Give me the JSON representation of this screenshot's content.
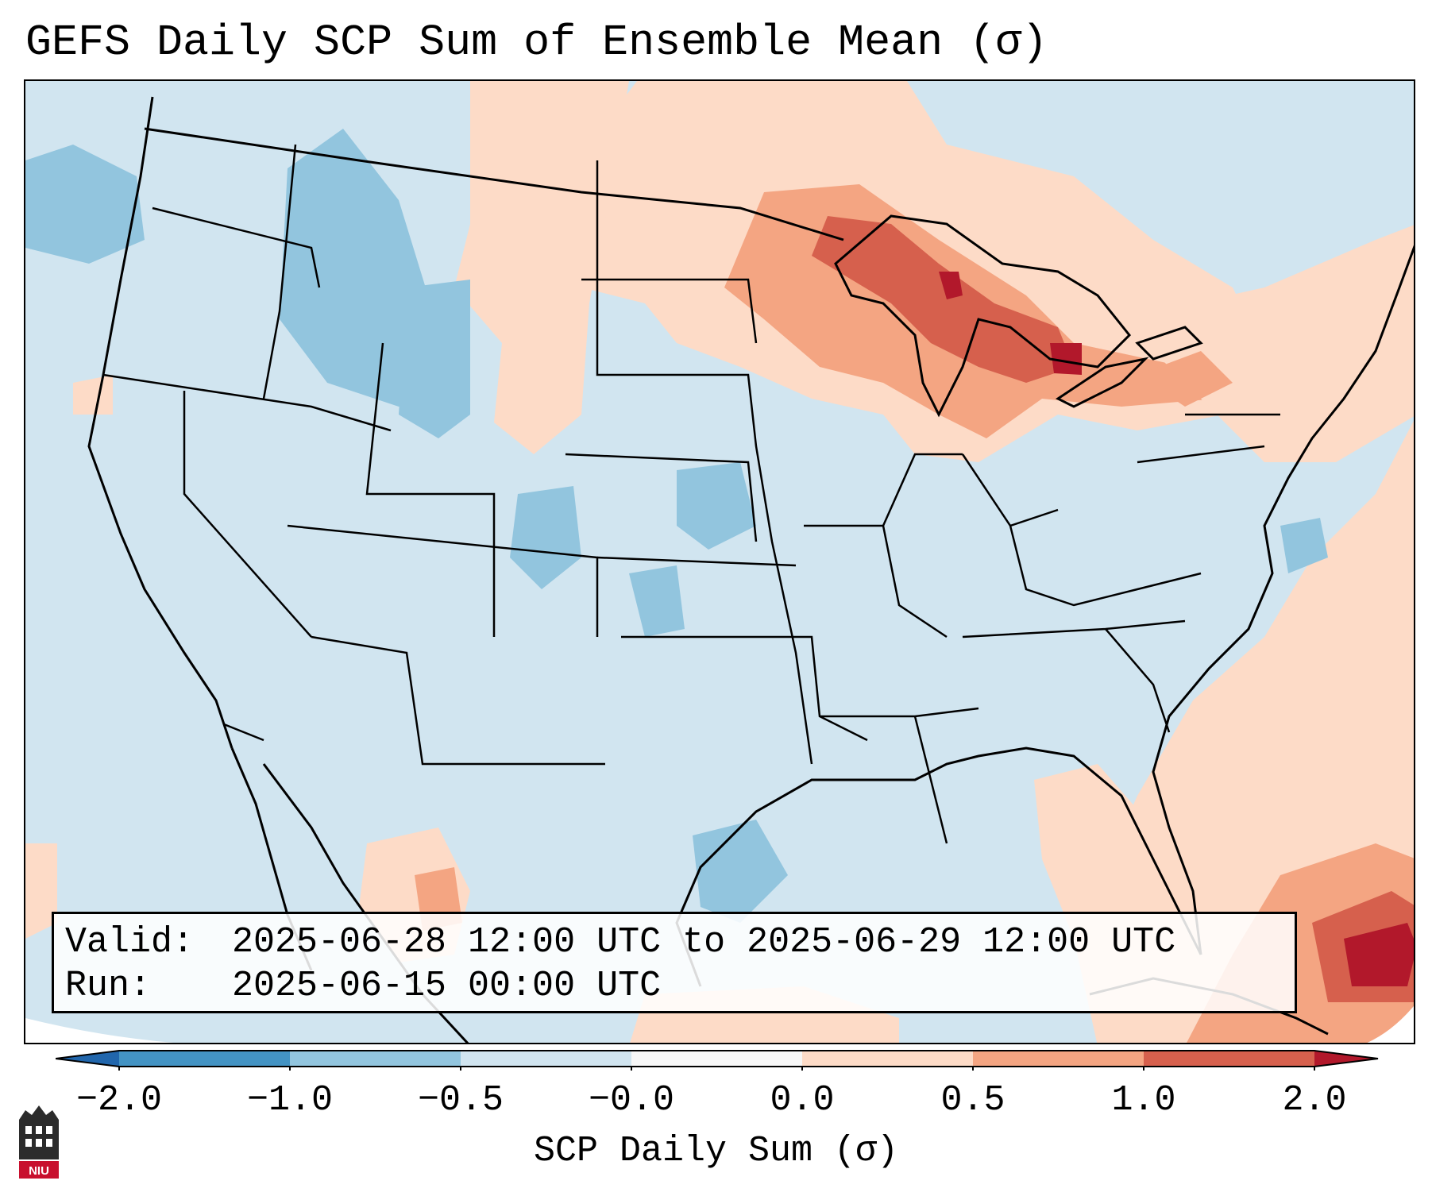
{
  "title": "GEFS Daily SCP Sum of Ensemble Mean (σ)",
  "info_box": {
    "valid_label": "Valid:",
    "valid_value": "2025-06-28 12:00 UTC to 2025-06-29 12:00 UTC",
    "run_label": "Run:",
    "run_value": "2025-06-15 00:00 UTC"
  },
  "colorbar": {
    "label": "SCP Daily Sum (σ)",
    "ticks": [
      "−2.0",
      "−1.0",
      "−0.5",
      "−0.0",
      "0.0",
      "0.5",
      "1.0",
      "2.0"
    ],
    "colors": {
      "under": "#2166ac",
      "bin_neg2_neg1": "#4393c3",
      "bin_neg1_neg05": "#92c5de",
      "bin_neg05_0": "#d1e5f0",
      "bin_0_0": "#f7f7f7",
      "bin_0_05": "#fddbc7",
      "bin_05_1": "#f4a582",
      "bin_1_2": "#d6604d",
      "over": "#b2182b"
    }
  },
  "map": {
    "region": "Contiguous United States, southern Canada, northern Mexico, Gulf of Mexico and western Caribbean",
    "field": "SCP daily sum anomaly of GEFS ensemble mean",
    "units": "σ",
    "positive_anomaly_areas": [
      "Upper Great Lakes",
      "Upper Midwest",
      "Northeast",
      "Southeast coast and western Atlantic",
      "Florida",
      "Cuba and western Caribbean"
    ],
    "negative_anomaly_areas": [
      "Idaho",
      "Montana",
      "Colorado",
      "Nebraska",
      "Pacific Northwest"
    ]
  },
  "logo": {
    "text": "NIU"
  }
}
